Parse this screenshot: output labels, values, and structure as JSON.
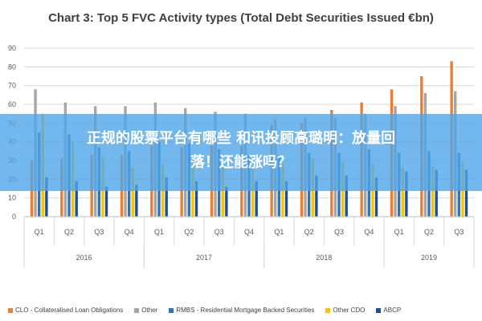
{
  "chart_data": {
    "type": "bar",
    "title": "Chart 3: Top 5 FVC Activity types (Total Debt Securities Issued €bn)",
    "categories": [
      "Q1",
      "Q2",
      "Q3",
      "Q4",
      "Q1",
      "Q2",
      "Q3",
      "Q4",
      "Q1",
      "Q2",
      "Q3",
      "Q4",
      "Q1",
      "Q2",
      "Q3"
    ],
    "groups": [
      {
        "label": "2016",
        "start": 0,
        "count": 4
      },
      {
        "label": "2017",
        "start": 4,
        "count": 4
      },
      {
        "label": "2018",
        "start": 8,
        "count": 4
      },
      {
        "label": "2019",
        "start": 12,
        "count": 3
      }
    ],
    "ylim": [
      0,
      90
    ],
    "yticks": [
      0,
      10,
      20,
      30,
      40,
      50,
      60,
      70,
      80,
      90
    ],
    "grid": true,
    "legend_position": "bottom",
    "series": [
      {
        "name": "CLO - Collateralised Loan Obligations",
        "color": "#ed7d31",
        "values": [
          30,
          31,
          33,
          33,
          38,
          37,
          38,
          38,
          49,
          50,
          57,
          61,
          68,
          75,
          83
        ]
      },
      {
        "name": "Other",
        "color": "#a5a5a5",
        "values": [
          68,
          61,
          59,
          59,
          61,
          58,
          56,
          55,
          52,
          53,
          53,
          55,
          59,
          66,
          67
        ]
      },
      {
        "name": "RMBS - Residential Mortgage Backed Securities",
        "color": "#2e75b6",
        "values": [
          45,
          44,
          37,
          35,
          40,
          39,
          36,
          33,
          33,
          34,
          34,
          36,
          34,
          35,
          34
        ]
      },
      {
        "name": "Other CDO",
        "color": "#ffc000",
        "values": [
          55,
          40,
          32,
          26,
          28,
          30,
          28,
          26,
          28,
          31,
          29,
          28,
          26,
          27,
          29
        ]
      },
      {
        "name": "ABCP",
        "color": "#1f4e9c",
        "values": [
          21,
          19,
          16,
          17,
          21,
          19,
          16,
          19,
          19,
          22,
          22,
          21,
          24,
          25,
          25
        ]
      }
    ]
  },
  "overlay": {
    "line1": "正规的股票平台有哪些 和讯投顾高璐明：放量回",
    "line2": "落！还能涨吗？"
  }
}
